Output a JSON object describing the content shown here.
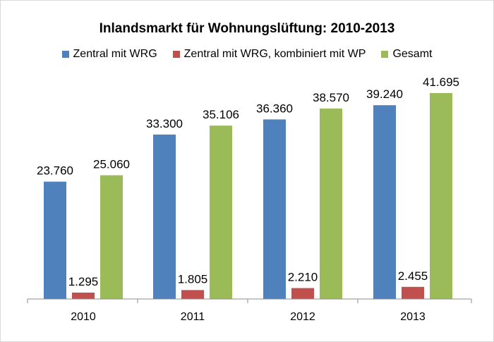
{
  "chart_data": {
    "type": "bar",
    "title": "Inlandsmarkt für Wohnungslüftung: 2010-2013",
    "categories": [
      "2010",
      "2011",
      "2012",
      "2013"
    ],
    "series": [
      {
        "name": "Zentral mit WRG",
        "color": "#4f81bd",
        "values": [
          23760,
          33300,
          36360,
          39240
        ],
        "labels": [
          "23.760",
          "33.300",
          "36.360",
          "39.240"
        ]
      },
      {
        "name": "Zentral mit WRG, kombiniert mit WP",
        "color": "#c0504d",
        "values": [
          1295,
          1805,
          2210,
          2455
        ],
        "labels": [
          "1.295",
          "1.805",
          "2.210",
          "2.455"
        ]
      },
      {
        "name": "Gesamt",
        "color": "#9bbb59",
        "values": [
          25060,
          35106,
          38570,
          41695
        ],
        "labels": [
          "25.060",
          "35.106",
          "38.570",
          "41.695"
        ]
      }
    ],
    "ylim": [
      0,
      41695
    ],
    "grid": false,
    "legend_position": "top"
  }
}
